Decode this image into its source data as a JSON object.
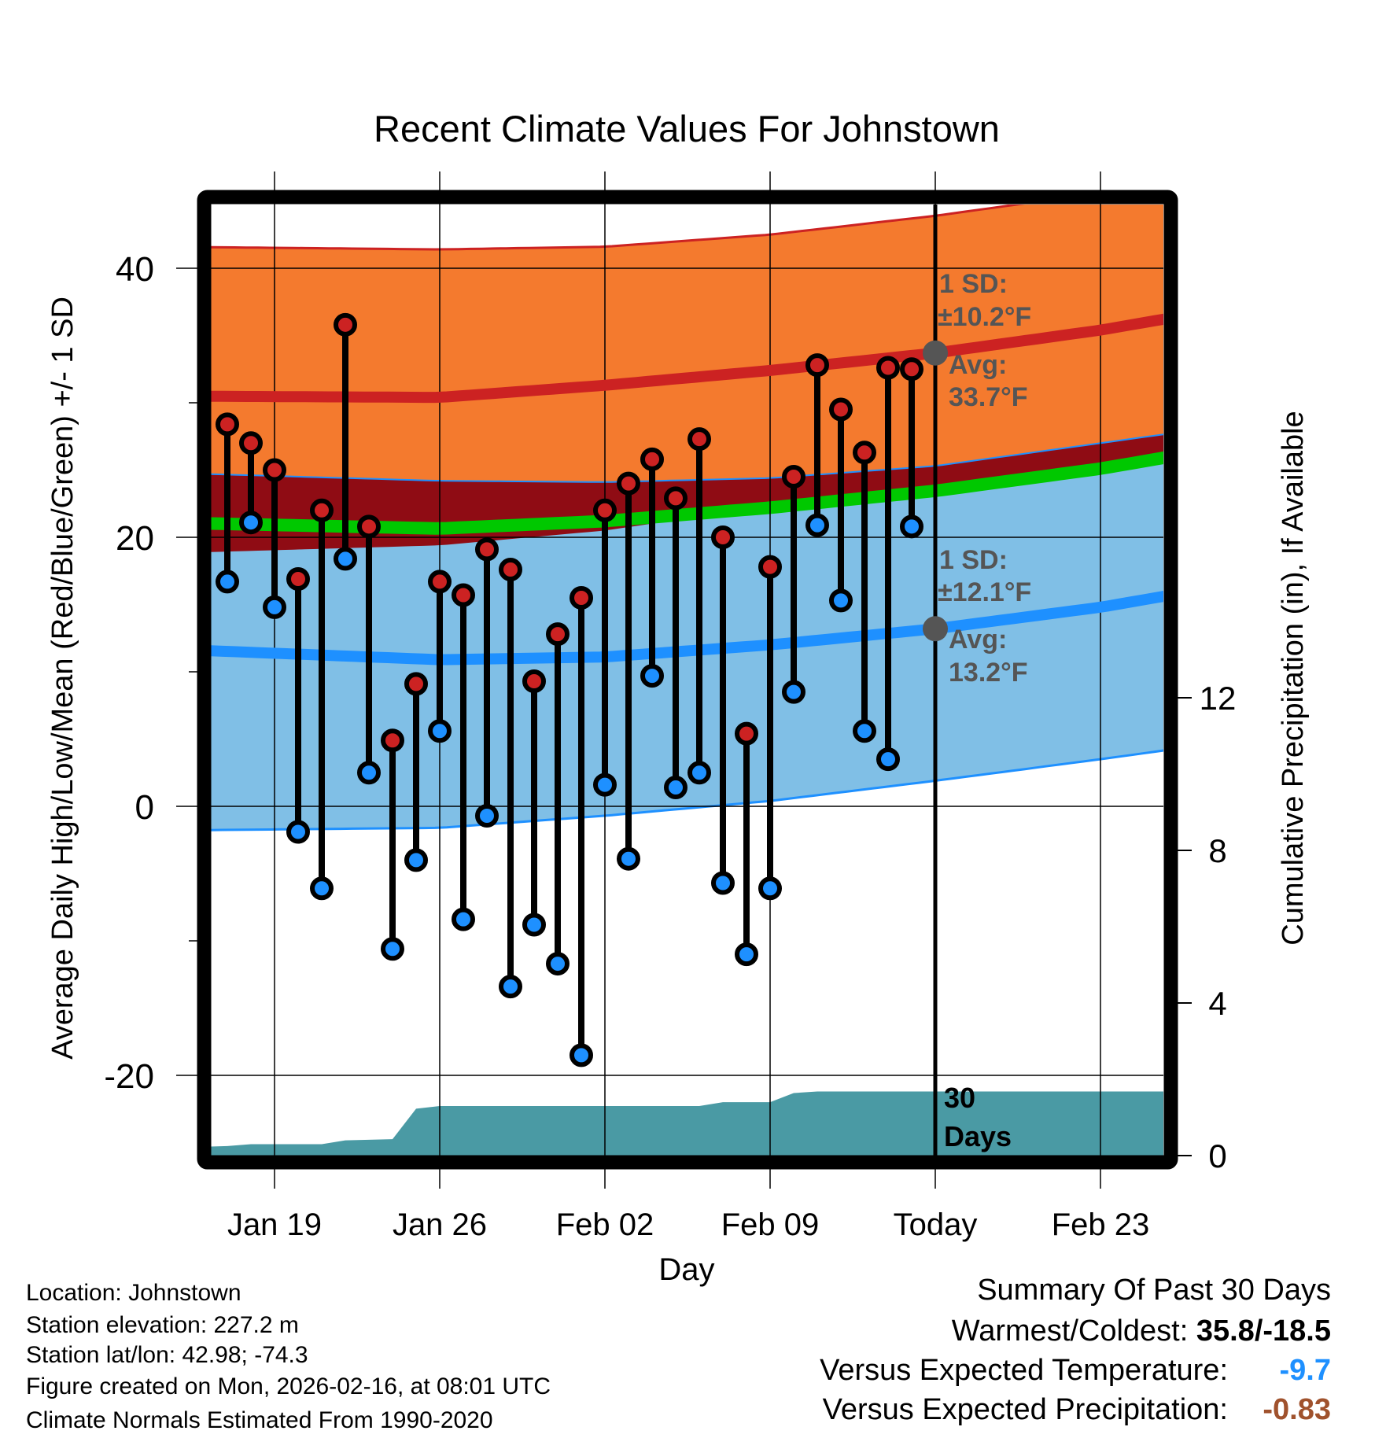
{
  "chart_data": {
    "type": "line",
    "title": "Recent Climate Values For Johnstown",
    "xlabel": "Day",
    "ylabel": "Average Daily High/Low/Mean (Red/Blue/Green) +/- 1 SD",
    "y2label": "Cumulative Precipitation (in), If Available",
    "ylim": [
      -26,
      44.7
    ],
    "y2lim": [
      0,
      12
    ],
    "xlim_days_from_first": [
      -2.7,
      40.3
    ],
    "yticks": [
      "40",
      "20",
      "0",
      "-20"
    ],
    "ytick_values": [
      40,
      20,
      0,
      -20
    ],
    "yminor_values": [
      30,
      10,
      -10
    ],
    "y2ticks": [
      "0",
      "4",
      "8",
      "12"
    ],
    "y2tick_values": [
      0,
      4,
      8,
      12
    ],
    "xticks": [
      "Jan 19",
      "Jan 26",
      "Feb 02",
      "Feb 09",
      "Today",
      "Feb 23"
    ],
    "xtick_days": [
      2,
      9,
      16,
      23,
      30,
      37
    ],
    "today_day": 30,
    "grid": true,
    "dates": [
      "Jan 17",
      "Jan 18",
      "Jan 19",
      "Jan 20",
      "Jan 21",
      "Jan 22",
      "Jan 23",
      "Jan 24",
      "Jan 25",
      "Jan 26",
      "Jan 27",
      "Jan 28",
      "Jan 29",
      "Jan 30",
      "Jan 31",
      "Feb 01",
      "Feb 02",
      "Feb 03",
      "Feb 04",
      "Feb 05",
      "Feb 06",
      "Feb 07",
      "Feb 08",
      "Feb 09",
      "Feb 10",
      "Feb 11",
      "Feb 12",
      "Feb 13",
      "Feb 14",
      "Feb 15"
    ],
    "series": [
      {
        "name": "Daily High",
        "color": "#cc2222",
        "values": [
          28.4,
          27.0,
          25.0,
          16.9,
          22.0,
          35.8,
          20.8,
          4.9,
          9.1,
          16.7,
          15.7,
          19.1,
          17.6,
          9.3,
          12.8,
          15.5,
          22.0,
          24.0,
          25.8,
          22.9,
          27.3,
          20.0,
          5.4,
          17.8,
          24.5,
          32.8,
          29.5,
          26.3,
          32.6,
          32.5
        ]
      },
      {
        "name": "Daily Low",
        "color": "#1e90ff",
        "values": [
          16.7,
          21.1,
          14.8,
          -1.9,
          -6.1,
          18.4,
          2.5,
          -10.6,
          -4.0,
          5.6,
          -8.4,
          -0.7,
          -13.4,
          -8.8,
          -11.7,
          -18.5,
          1.6,
          -3.9,
          9.7,
          1.4,
          2.5,
          -5.7,
          -11.0,
          -6.1,
          8.5,
          20.9,
          15.3,
          5.6,
          3.5,
          20.8
        ]
      }
    ],
    "normals": {
      "days": [
        -2.7,
        9,
        16,
        23,
        30,
        37,
        40.3
      ],
      "high_avg": [
        30.5,
        30.4,
        31.3,
        32.4,
        33.7,
        35.4,
        36.4
      ],
      "high_upper": [
        41.6,
        41.4,
        41.6,
        42.5,
        43.9,
        45.6,
        46.5
      ],
      "high_lower": [
        18.8,
        19.4,
        20.5,
        22.3,
        23.5,
        25.2,
        26.1
      ],
      "low_avg": [
        11.7,
        10.9,
        11.1,
        12.0,
        13.2,
        14.8,
        15.8
      ],
      "low_upper": [
        24.8,
        24.2,
        24.1,
        24.4,
        25.3,
        27.0,
        27.8
      ],
      "low_lower": [
        -1.8,
        -1.6,
        -0.7,
        0.4,
        1.9,
        3.5,
        4.3
      ]
    },
    "precip_cumulative": {
      "days": [
        -2.7,
        0,
        1,
        4,
        5,
        7,
        8,
        9,
        20,
        21,
        23,
        24,
        25,
        40.3
      ],
      "values": [
        0.2,
        0.25,
        0.3,
        0.3,
        0.4,
        0.43,
        1.23,
        1.3,
        1.3,
        1.4,
        1.4,
        1.64,
        1.68,
        1.68
      ]
    },
    "colors": {
      "high_band": "#f47a2e",
      "overlap_band": "#8f0c14",
      "mean_line": "#00c800",
      "low_band": "#80bfe6",
      "high_line": "#cc2222",
      "low_line": "#1e90ff",
      "precip": "#4a9aa4",
      "annotation": "#555555"
    },
    "annotations": {
      "high_sd_label": "1 SD:",
      "high_sd_value": "±10.2°F",
      "high_avg_label": "Avg:",
      "high_avg_value": "33.7°F",
      "low_sd_label": "1 SD:",
      "low_sd_value": "±12.1°F",
      "low_avg_label": "Avg:",
      "low_avg_value": "13.2°F",
      "high_avg_today": 33.7,
      "low_avg_today": 13.2,
      "window_line1": "30",
      "window_line2": "Days"
    }
  },
  "footer": {
    "location": "Location: Johnstown",
    "elevation": "Station elevation: 227.2 m",
    "latlon": "Station lat/lon: 42.98; -74.3",
    "created": "Figure created on Mon, 2026-02-16, at 08:01 UTC",
    "normals": "Climate Normals Estimated From 1990-2020"
  },
  "summary": {
    "title": "Summary Of Past 30 Days",
    "warmest_label": "Warmest/Coldest: ",
    "warmest_value": "35.8/-18.5",
    "temp_label": "Versus Expected Temperature:",
    "temp_value": "-9.7",
    "temp_color": "#1e90ff",
    "precip_label": "Versus Expected Precipitation:",
    "precip_value": "-0.83",
    "precip_color": "#a0522d"
  }
}
